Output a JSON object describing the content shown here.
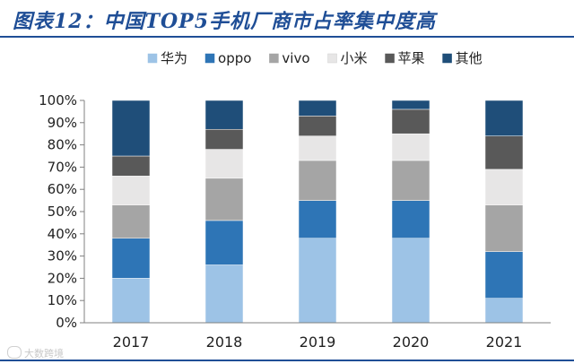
{
  "title": "图表12：中国TOP5手机厂商市占率集中度高",
  "watermark": "大数跨境",
  "colors": {
    "title": "#1f4e96",
    "axis": "#808080",
    "text": "#222222"
  },
  "chart_data": {
    "type": "bar",
    "stacked": true,
    "categories": [
      "2017",
      "2018",
      "2019",
      "2020",
      "2021"
    ],
    "series": [
      {
        "name": "华为",
        "color": "#9dc3e6",
        "values": [
          20,
          26,
          38,
          38,
          11
        ]
      },
      {
        "name": "oppo",
        "color": "#2e75b6",
        "values": [
          18,
          20,
          17,
          17,
          21
        ]
      },
      {
        "name": "vivo",
        "color": "#a5a5a5",
        "values": [
          15,
          19,
          18,
          18,
          21
        ]
      },
      {
        "name": "小米",
        "color": "#e7e6e6",
        "values": [
          13,
          13,
          11,
          12,
          16
        ]
      },
      {
        "name": "苹果",
        "color": "#595959",
        "values": [
          9,
          9,
          9,
          11,
          15
        ]
      },
      {
        "name": "其他",
        "color": "#1f4e79",
        "values": [
          25,
          13,
          7,
          4,
          16
        ]
      }
    ],
    "yticks": [
      "0%",
      "10%",
      "20%",
      "30%",
      "40%",
      "50%",
      "60%",
      "70%",
      "80%",
      "90%",
      "100%"
    ],
    "ylim": [
      0,
      100
    ],
    "legend_position": "top"
  }
}
